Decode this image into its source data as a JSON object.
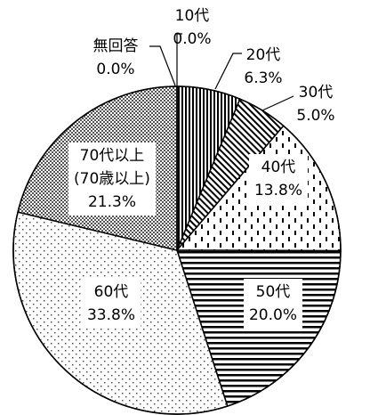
{
  "chart_data": {
    "type": "pie",
    "categories": [
      "10代",
      "20代",
      "30代",
      "40代",
      "50代",
      "60代",
      "70代以上\n(70歳以上)",
      "無回答"
    ],
    "values": [
      0.0,
      6.3,
      5.0,
      13.8,
      20.0,
      33.8,
      21.3,
      0.0
    ],
    "value_labels": [
      "0.0%",
      "6.3%",
      "5.0%",
      "13.8%",
      "20.0%",
      "33.8%",
      "21.3%",
      "0.0%"
    ],
    "patterns": [
      "none",
      "vertical",
      "diagonal",
      "dashed",
      "horizontal",
      "dots",
      "checker",
      "none"
    ]
  }
}
